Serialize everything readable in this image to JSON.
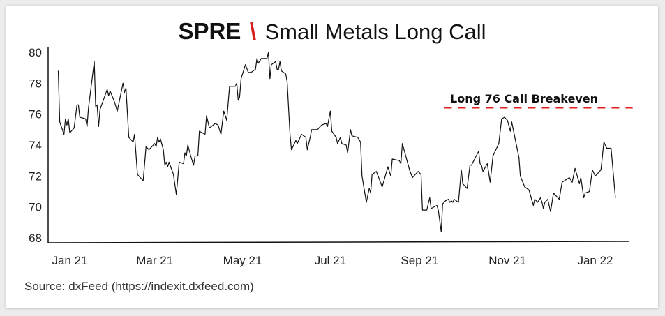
{
  "chart_data": {
    "type": "line",
    "title": {
      "ticker": "SPRE",
      "separator": "\\",
      "name": "Small Metals Long Call"
    },
    "source": "Source: dxFeed (https://indexit.dxfeed.com)",
    "ylim": [
      68,
      80
    ],
    "y_ticks": [
      "68",
      "70",
      "72",
      "74",
      "76",
      "78",
      "80"
    ],
    "x_ticks": [
      {
        "date": "2021-01-01",
        "label": "Jan 21"
      },
      {
        "date": "2021-03-01",
        "label": "Mar 21"
      },
      {
        "date": "2021-05-01",
        "label": "May 21"
      },
      {
        "date": "2021-07-01",
        "label": "Jul 21"
      },
      {
        "date": "2021-09-01",
        "label": "Sep 21"
      },
      {
        "date": "2021-11-01",
        "label": "Nov 21"
      },
      {
        "date": "2022-01-01",
        "label": "Jan 22"
      }
    ],
    "grid": false,
    "line_color": "#111111",
    "annotation": {
      "label": "Long 76 Call Breakeven",
      "value": 76.4,
      "color": "#e02020",
      "style": "dashed",
      "x_start": "2021-09-18",
      "x_end": "2022-01-27"
    },
    "accent_color": "#d62020",
    "series": [
      {
        "points": [
          [
            "2020-12-24",
            78.8
          ],
          [
            "2020-12-25",
            75.5
          ],
          [
            "2020-12-28",
            74.7
          ],
          [
            "2020-12-29",
            75.7
          ],
          [
            "2020-12-30",
            75.3
          ],
          [
            "2020-12-31",
            75.7
          ],
          [
            "2021-01-01",
            74.8
          ],
          [
            "2021-01-04",
            75.1
          ],
          [
            "2021-01-06",
            76.6
          ],
          [
            "2021-01-07",
            76.6
          ],
          [
            "2021-01-08",
            75.8
          ],
          [
            "2021-01-12",
            75.7
          ],
          [
            "2021-01-13",
            75.2
          ],
          [
            "2021-01-14",
            76.4
          ],
          [
            "2021-01-18",
            79.4
          ],
          [
            "2021-01-19",
            76.5
          ],
          [
            "2021-01-20",
            76.6
          ],
          [
            "2021-01-21",
            75.2
          ],
          [
            "2021-01-22",
            76.3
          ],
          [
            "2021-01-27",
            77.6
          ],
          [
            "2021-01-28",
            77.2
          ],
          [
            "2021-01-29",
            77.5
          ],
          [
            "2021-02-01",
            76.8
          ],
          [
            "2021-02-03",
            76.2
          ],
          [
            "2021-02-07",
            78.0
          ],
          [
            "2021-02-08",
            77.4
          ],
          [
            "2021-02-09",
            77.7
          ],
          [
            "2021-02-11",
            74.5
          ],
          [
            "2021-02-14",
            74.2
          ],
          [
            "2021-02-15",
            74.7
          ],
          [
            "2021-02-17",
            72.1
          ],
          [
            "2021-02-21",
            71.7
          ],
          [
            "2021-02-23",
            73.9
          ],
          [
            "2021-02-25",
            73.7
          ],
          [
            "2021-03-01",
            74.1
          ],
          [
            "2021-03-02",
            73.9
          ],
          [
            "2021-03-03",
            74.5
          ],
          [
            "2021-03-04",
            74.2
          ],
          [
            "2021-03-05",
            74.4
          ],
          [
            "2021-03-07",
            73.7
          ],
          [
            "2021-03-08",
            72.7
          ],
          [
            "2021-03-09",
            72.9
          ],
          [
            "2021-03-10",
            72.6
          ],
          [
            "2021-03-11",
            72.9
          ],
          [
            "2021-03-14",
            72.1
          ],
          [
            "2021-03-16",
            70.8
          ],
          [
            "2021-03-18",
            72.9
          ],
          [
            "2021-03-21",
            72.8
          ],
          [
            "2021-03-22",
            73.5
          ],
          [
            "2021-03-23",
            73.3
          ],
          [
            "2021-03-24",
            74.0
          ],
          [
            "2021-03-26",
            73.3
          ],
          [
            "2021-03-28",
            72.7
          ],
          [
            "2021-03-29",
            73.3
          ],
          [
            "2021-03-31",
            73.3
          ],
          [
            "2021-04-01",
            74.9
          ],
          [
            "2021-04-05",
            74.7
          ],
          [
            "2021-04-06",
            75.9
          ],
          [
            "2021-04-08",
            75.1
          ],
          [
            "2021-04-12",
            75.4
          ],
          [
            "2021-04-14",
            75.3
          ],
          [
            "2021-04-16",
            74.7
          ],
          [
            "2021-04-18",
            76.2
          ],
          [
            "2021-04-20",
            75.6
          ],
          [
            "2021-04-22",
            77.8
          ],
          [
            "2021-04-26",
            77.8
          ],
          [
            "2021-04-27",
            78.0
          ],
          [
            "2021-04-28",
            76.9
          ],
          [
            "2021-04-29",
            77.1
          ],
          [
            "2021-04-30",
            78.3
          ],
          [
            "2021-05-03",
            79.2
          ],
          [
            "2021-05-05",
            78.7
          ],
          [
            "2021-05-07",
            78.7
          ],
          [
            "2021-05-10",
            78.9
          ],
          [
            "2021-05-11",
            79.6
          ],
          [
            "2021-05-12",
            79.3
          ],
          [
            "2021-05-14",
            79.6
          ],
          [
            "2021-05-18",
            79.6
          ],
          [
            "2021-05-19",
            80.0
          ],
          [
            "2021-05-20",
            78.3
          ],
          [
            "2021-05-21",
            79.2
          ],
          [
            "2021-05-24",
            79.4
          ],
          [
            "2021-05-25",
            78.9
          ],
          [
            "2021-05-26",
            78.9
          ],
          [
            "2021-05-27",
            79.4
          ],
          [
            "2021-05-28",
            78.8
          ],
          [
            "2021-05-31",
            78.6
          ],
          [
            "2021-06-01",
            78.1
          ],
          [
            "2021-06-03",
            74.7
          ],
          [
            "2021-06-04",
            73.7
          ],
          [
            "2021-06-07",
            74.3
          ],
          [
            "2021-06-08",
            74.1
          ],
          [
            "2021-06-09",
            74.3
          ],
          [
            "2021-06-11",
            74.7
          ],
          [
            "2021-06-14",
            74.5
          ],
          [
            "2021-06-15",
            73.7
          ],
          [
            "2021-06-17",
            74.5
          ],
          [
            "2021-06-18",
            75.0
          ],
          [
            "2021-06-22",
            75.0
          ],
          [
            "2021-06-23",
            75.1
          ],
          [
            "2021-06-25",
            75.3
          ],
          [
            "2021-06-28",
            75.4
          ],
          [
            "2021-06-29",
            75.2
          ],
          [
            "2021-07-01",
            76.2
          ],
          [
            "2021-07-02",
            74.9
          ],
          [
            "2021-07-05",
            74.5
          ],
          [
            "2021-07-06",
            74.1
          ],
          [
            "2021-07-08",
            74.5
          ],
          [
            "2021-07-09",
            74.1
          ],
          [
            "2021-07-12",
            74.0
          ],
          [
            "2021-07-13",
            73.5
          ],
          [
            "2021-07-15",
            75.0
          ],
          [
            "2021-07-16",
            74.6
          ],
          [
            "2021-07-20",
            74.5
          ],
          [
            "2021-07-22",
            74.2
          ],
          [
            "2021-07-23",
            72.0
          ],
          [
            "2021-07-26",
            70.3
          ],
          [
            "2021-07-28",
            71.2
          ],
          [
            "2021-07-29",
            70.9
          ],
          [
            "2021-07-30",
            72.1
          ],
          [
            "2021-08-02",
            72.3
          ],
          [
            "2021-08-04",
            71.8
          ],
          [
            "2021-08-06",
            71.3
          ],
          [
            "2021-08-10",
            72.6
          ],
          [
            "2021-08-12",
            72.0
          ],
          [
            "2021-08-13",
            73.1
          ],
          [
            "2021-08-18",
            73.0
          ],
          [
            "2021-08-19",
            72.8
          ],
          [
            "2021-08-20",
            74.1
          ],
          [
            "2021-08-25",
            72.4
          ],
          [
            "2021-08-27",
            71.9
          ],
          [
            "2021-08-31",
            72.3
          ],
          [
            "2021-09-02",
            72.1
          ],
          [
            "2021-09-03",
            69.8
          ],
          [
            "2021-09-06",
            69.8
          ],
          [
            "2021-09-08",
            70.6
          ],
          [
            "2021-09-09",
            69.9
          ],
          [
            "2021-09-13",
            70.1
          ],
          [
            "2021-09-14",
            69.8
          ],
          [
            "2021-09-16",
            68.4
          ],
          [
            "2021-09-17",
            70.2
          ],
          [
            "2021-09-19",
            70.4
          ],
          [
            "2021-09-21",
            70.5
          ],
          [
            "2021-09-22",
            70.3
          ],
          [
            "2021-09-23",
            70.4
          ],
          [
            "2021-09-24",
            70.3
          ],
          [
            "2021-09-25",
            70.5
          ],
          [
            "2021-09-28",
            70.3
          ],
          [
            "2021-09-30",
            72.4
          ],
          [
            "2021-10-01",
            71.5
          ],
          [
            "2021-10-04",
            71.2
          ],
          [
            "2021-10-06",
            72.7
          ],
          [
            "2021-10-07",
            72.7
          ],
          [
            "2021-10-12",
            73.6
          ],
          [
            "2021-10-13",
            72.8
          ],
          [
            "2021-10-14",
            72.7
          ],
          [
            "2021-10-15",
            72.3
          ],
          [
            "2021-10-18",
            72.8
          ],
          [
            "2021-10-20",
            71.6
          ],
          [
            "2021-10-22",
            73.3
          ],
          [
            "2021-10-26",
            74.1
          ],
          [
            "2021-10-28",
            75.7
          ],
          [
            "2021-10-30",
            75.8
          ],
          [
            "2021-11-01",
            75.6
          ],
          [
            "2021-11-03",
            74.9
          ],
          [
            "2021-11-04",
            75.5
          ],
          [
            "2021-11-09",
            73.2
          ],
          [
            "2021-11-10",
            72.0
          ],
          [
            "2021-11-13",
            71.3
          ],
          [
            "2021-11-16",
            71.1
          ],
          [
            "2021-11-19",
            70.1
          ],
          [
            "2021-11-20",
            70.5
          ],
          [
            "2021-11-22",
            70.3
          ],
          [
            "2021-11-24",
            70.6
          ],
          [
            "2021-11-25",
            70.3
          ],
          [
            "2021-11-26",
            69.9
          ],
          [
            "2021-11-27",
            70.3
          ],
          [
            "2021-11-29",
            70.5
          ],
          [
            "2021-12-01",
            69.7
          ],
          [
            "2021-12-03",
            70.9
          ],
          [
            "2021-12-07",
            70.5
          ],
          [
            "2021-12-09",
            71.6
          ],
          [
            "2021-12-14",
            71.9
          ],
          [
            "2021-12-16",
            71.6
          ],
          [
            "2021-12-18",
            72.5
          ],
          [
            "2021-12-21",
            71.5
          ],
          [
            "2021-12-22",
            71.9
          ],
          [
            "2021-12-24",
            70.6
          ],
          [
            "2021-12-25",
            70.9
          ],
          [
            "2021-12-28",
            71.0
          ],
          [
            "2021-12-30",
            72.4
          ],
          [
            "2022-01-01",
            72.0
          ],
          [
            "2022-01-05",
            72.4
          ],
          [
            "2022-01-07",
            74.2
          ],
          [
            "2022-01-09",
            73.8
          ],
          [
            "2022-01-12",
            73.8
          ],
          [
            "2022-01-15",
            70.6
          ]
        ]
      }
    ]
  }
}
